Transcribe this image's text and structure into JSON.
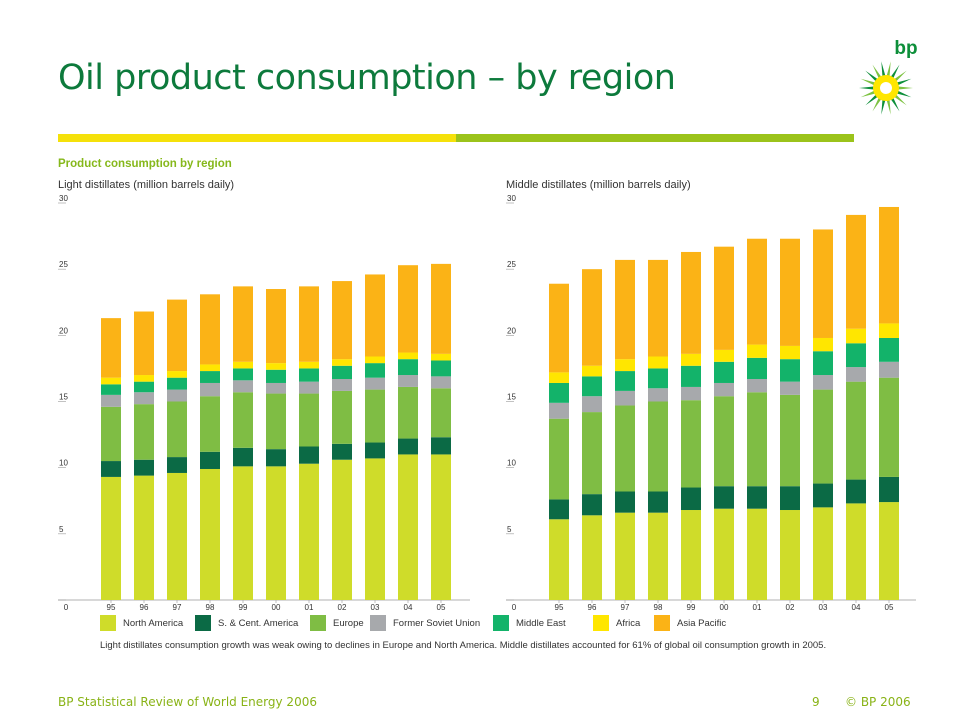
{
  "slide": {
    "title": "Oil product consumption – by region",
    "logo_text": "bp",
    "section_title": "Product consumption by region",
    "note": "Light distillates consumption growth was weak owing to declines in Europe and North America. Middle distillates accounted for 61% of global oil consumption growth in 2005.",
    "footer_left": "BP Statistical Review of World Energy 2006",
    "page_number": "9",
    "copyright": "© BP 2006"
  },
  "colors": {
    "title": "#0d7a3c",
    "accent_yellow": "#f5e10a",
    "accent_green": "#9bc31b"
  },
  "legend": [
    {
      "name": "North America",
      "color": "#cfdc2a"
    },
    {
      "name": "S. & Cent. America",
      "color": "#0b6a45"
    },
    {
      "name": "Europe",
      "color": "#7fbd44"
    },
    {
      "name": "Former Soviet Union",
      "color": "#a7a9ac"
    },
    {
      "name": "Middle East",
      "color": "#13b36a"
    },
    {
      "name": "Africa",
      "color": "#ffe600"
    },
    {
      "name": "Asia Pacific",
      "color": "#fbb316"
    }
  ],
  "chart_data": [
    {
      "type": "bar",
      "stacked": true,
      "title": "Light distillates (million barrels daily)",
      "categories": [
        "95",
        "96",
        "97",
        "98",
        "99",
        "00",
        "01",
        "02",
        "03",
        "04",
        "05"
      ],
      "ylim": [
        0,
        30
      ],
      "yticks": [
        0,
        5,
        10,
        15,
        20,
        25,
        30
      ],
      "series": [
        {
          "name": "North America",
          "values": [
            9.3,
            9.4,
            9.6,
            9.9,
            10.1,
            10.1,
            10.3,
            10.6,
            10.7,
            11.0,
            11.0
          ]
        },
        {
          "name": "S. & Cent. America",
          "values": [
            1.2,
            1.2,
            1.2,
            1.3,
            1.4,
            1.3,
            1.3,
            1.2,
            1.2,
            1.2,
            1.3
          ]
        },
        {
          "name": "Europe",
          "values": [
            4.1,
            4.2,
            4.2,
            4.2,
            4.2,
            4.2,
            4.0,
            4.0,
            4.0,
            3.9,
            3.7
          ]
        },
        {
          "name": "Former Soviet Union",
          "values": [
            0.9,
            0.9,
            0.9,
            1.0,
            0.9,
            0.8,
            0.9,
            0.9,
            0.9,
            0.9,
            0.9
          ]
        },
        {
          "name": "Middle East",
          "values": [
            0.8,
            0.8,
            0.9,
            0.9,
            0.9,
            1.0,
            1.0,
            1.0,
            1.1,
            1.2,
            1.2
          ]
        },
        {
          "name": "Africa",
          "values": [
            0.5,
            0.5,
            0.5,
            0.5,
            0.5,
            0.5,
            0.5,
            0.5,
            0.5,
            0.5,
            0.5
          ]
        },
        {
          "name": "Asia Pacific",
          "values": [
            4.5,
            4.8,
            5.4,
            5.3,
            5.7,
            5.6,
            5.7,
            5.9,
            6.2,
            6.6,
            6.8
          ]
        }
      ]
    },
    {
      "type": "bar",
      "stacked": true,
      "title": "Middle distillates (million barrels daily)",
      "categories": [
        "95",
        "96",
        "97",
        "98",
        "99",
        "00",
        "01",
        "02",
        "03",
        "04",
        "05"
      ],
      "ylim": [
        0,
        30
      ],
      "yticks": [
        0,
        5,
        10,
        15,
        20,
        25,
        30
      ],
      "series": [
        {
          "name": "North America",
          "values": [
            6.1,
            6.4,
            6.6,
            6.6,
            6.8,
            6.9,
            6.9,
            6.8,
            7.0,
            7.3,
            7.4
          ]
        },
        {
          "name": "S. & Cent. America",
          "values": [
            1.5,
            1.6,
            1.6,
            1.6,
            1.7,
            1.7,
            1.7,
            1.8,
            1.8,
            1.8,
            1.9
          ]
        },
        {
          "name": "Europe",
          "values": [
            6.1,
            6.2,
            6.5,
            6.8,
            6.6,
            6.8,
            7.1,
            6.9,
            7.1,
            7.4,
            7.5
          ]
        },
        {
          "name": "Former Soviet Union",
          "values": [
            1.2,
            1.2,
            1.1,
            1.0,
            1.0,
            1.0,
            1.0,
            1.0,
            1.1,
            1.1,
            1.2
          ]
        },
        {
          "name": "Middle East",
          "values": [
            1.5,
            1.5,
            1.5,
            1.5,
            1.6,
            1.6,
            1.6,
            1.7,
            1.8,
            1.8,
            1.8
          ]
        },
        {
          "name": "Africa",
          "values": [
            0.8,
            0.8,
            0.9,
            0.9,
            0.9,
            0.9,
            1.0,
            1.0,
            1.0,
            1.1,
            1.1
          ]
        },
        {
          "name": "Asia Pacific",
          "values": [
            6.7,
            7.3,
            7.5,
            7.3,
            7.7,
            7.8,
            8.0,
            8.1,
            8.2,
            8.6,
            8.8
          ]
        }
      ]
    }
  ]
}
